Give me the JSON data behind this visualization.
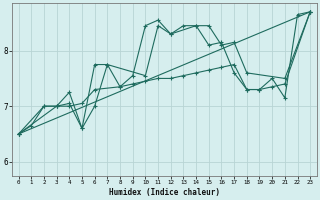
{
  "xlabel": "Humidex (Indice chaleur)",
  "background_color": "#d6eeee",
  "grid_color": "#b8d4d4",
  "line_color": "#1e6b5e",
  "xlim": [
    -0.5,
    23.5
  ],
  "ylim": [
    5.75,
    8.85
  ],
  "yticks": [
    6,
    7,
    8
  ],
  "xticks": [
    0,
    1,
    2,
    3,
    4,
    5,
    6,
    7,
    8,
    9,
    10,
    11,
    12,
    13,
    14,
    15,
    16,
    17,
    18,
    19,
    20,
    21,
    22,
    23
  ],
  "curve1_x": [
    0,
    1,
    2,
    3,
    4,
    5,
    6,
    7,
    8,
    9,
    10,
    11,
    12,
    13,
    14,
    15,
    16,
    17,
    18,
    19,
    20,
    21,
    22,
    23
  ],
  "curve1_y": [
    6.5,
    6.65,
    7.0,
    7.0,
    7.05,
    6.6,
    7.75,
    7.75,
    7.35,
    7.55,
    8.45,
    8.55,
    8.3,
    8.45,
    8.45,
    8.1,
    8.15,
    7.6,
    7.3,
    7.3,
    7.5,
    7.15,
    8.65,
    8.7
  ],
  "curve2_x": [
    0,
    3,
    4,
    5,
    6,
    8,
    9,
    10,
    11,
    12,
    13,
    14,
    15,
    16,
    17,
    18,
    19,
    20,
    21,
    23
  ],
  "curve2_y": [
    6.5,
    7.0,
    7.0,
    7.05,
    7.3,
    7.35,
    7.4,
    7.45,
    7.5,
    7.5,
    7.55,
    7.6,
    7.65,
    7.7,
    7.75,
    7.3,
    7.3,
    7.35,
    7.4,
    8.7
  ],
  "curve3_x": [
    0,
    2,
    3,
    4,
    5,
    6,
    7,
    10,
    11,
    12,
    14,
    15,
    16,
    17,
    18,
    21,
    23
  ],
  "curve3_y": [
    6.5,
    7.0,
    7.0,
    7.25,
    6.6,
    7.0,
    7.75,
    7.55,
    8.45,
    8.3,
    8.45,
    8.45,
    8.1,
    8.15,
    7.6,
    7.5,
    8.7
  ],
  "curve4_x": [
    0,
    23
  ],
  "curve4_y": [
    6.5,
    8.7
  ]
}
